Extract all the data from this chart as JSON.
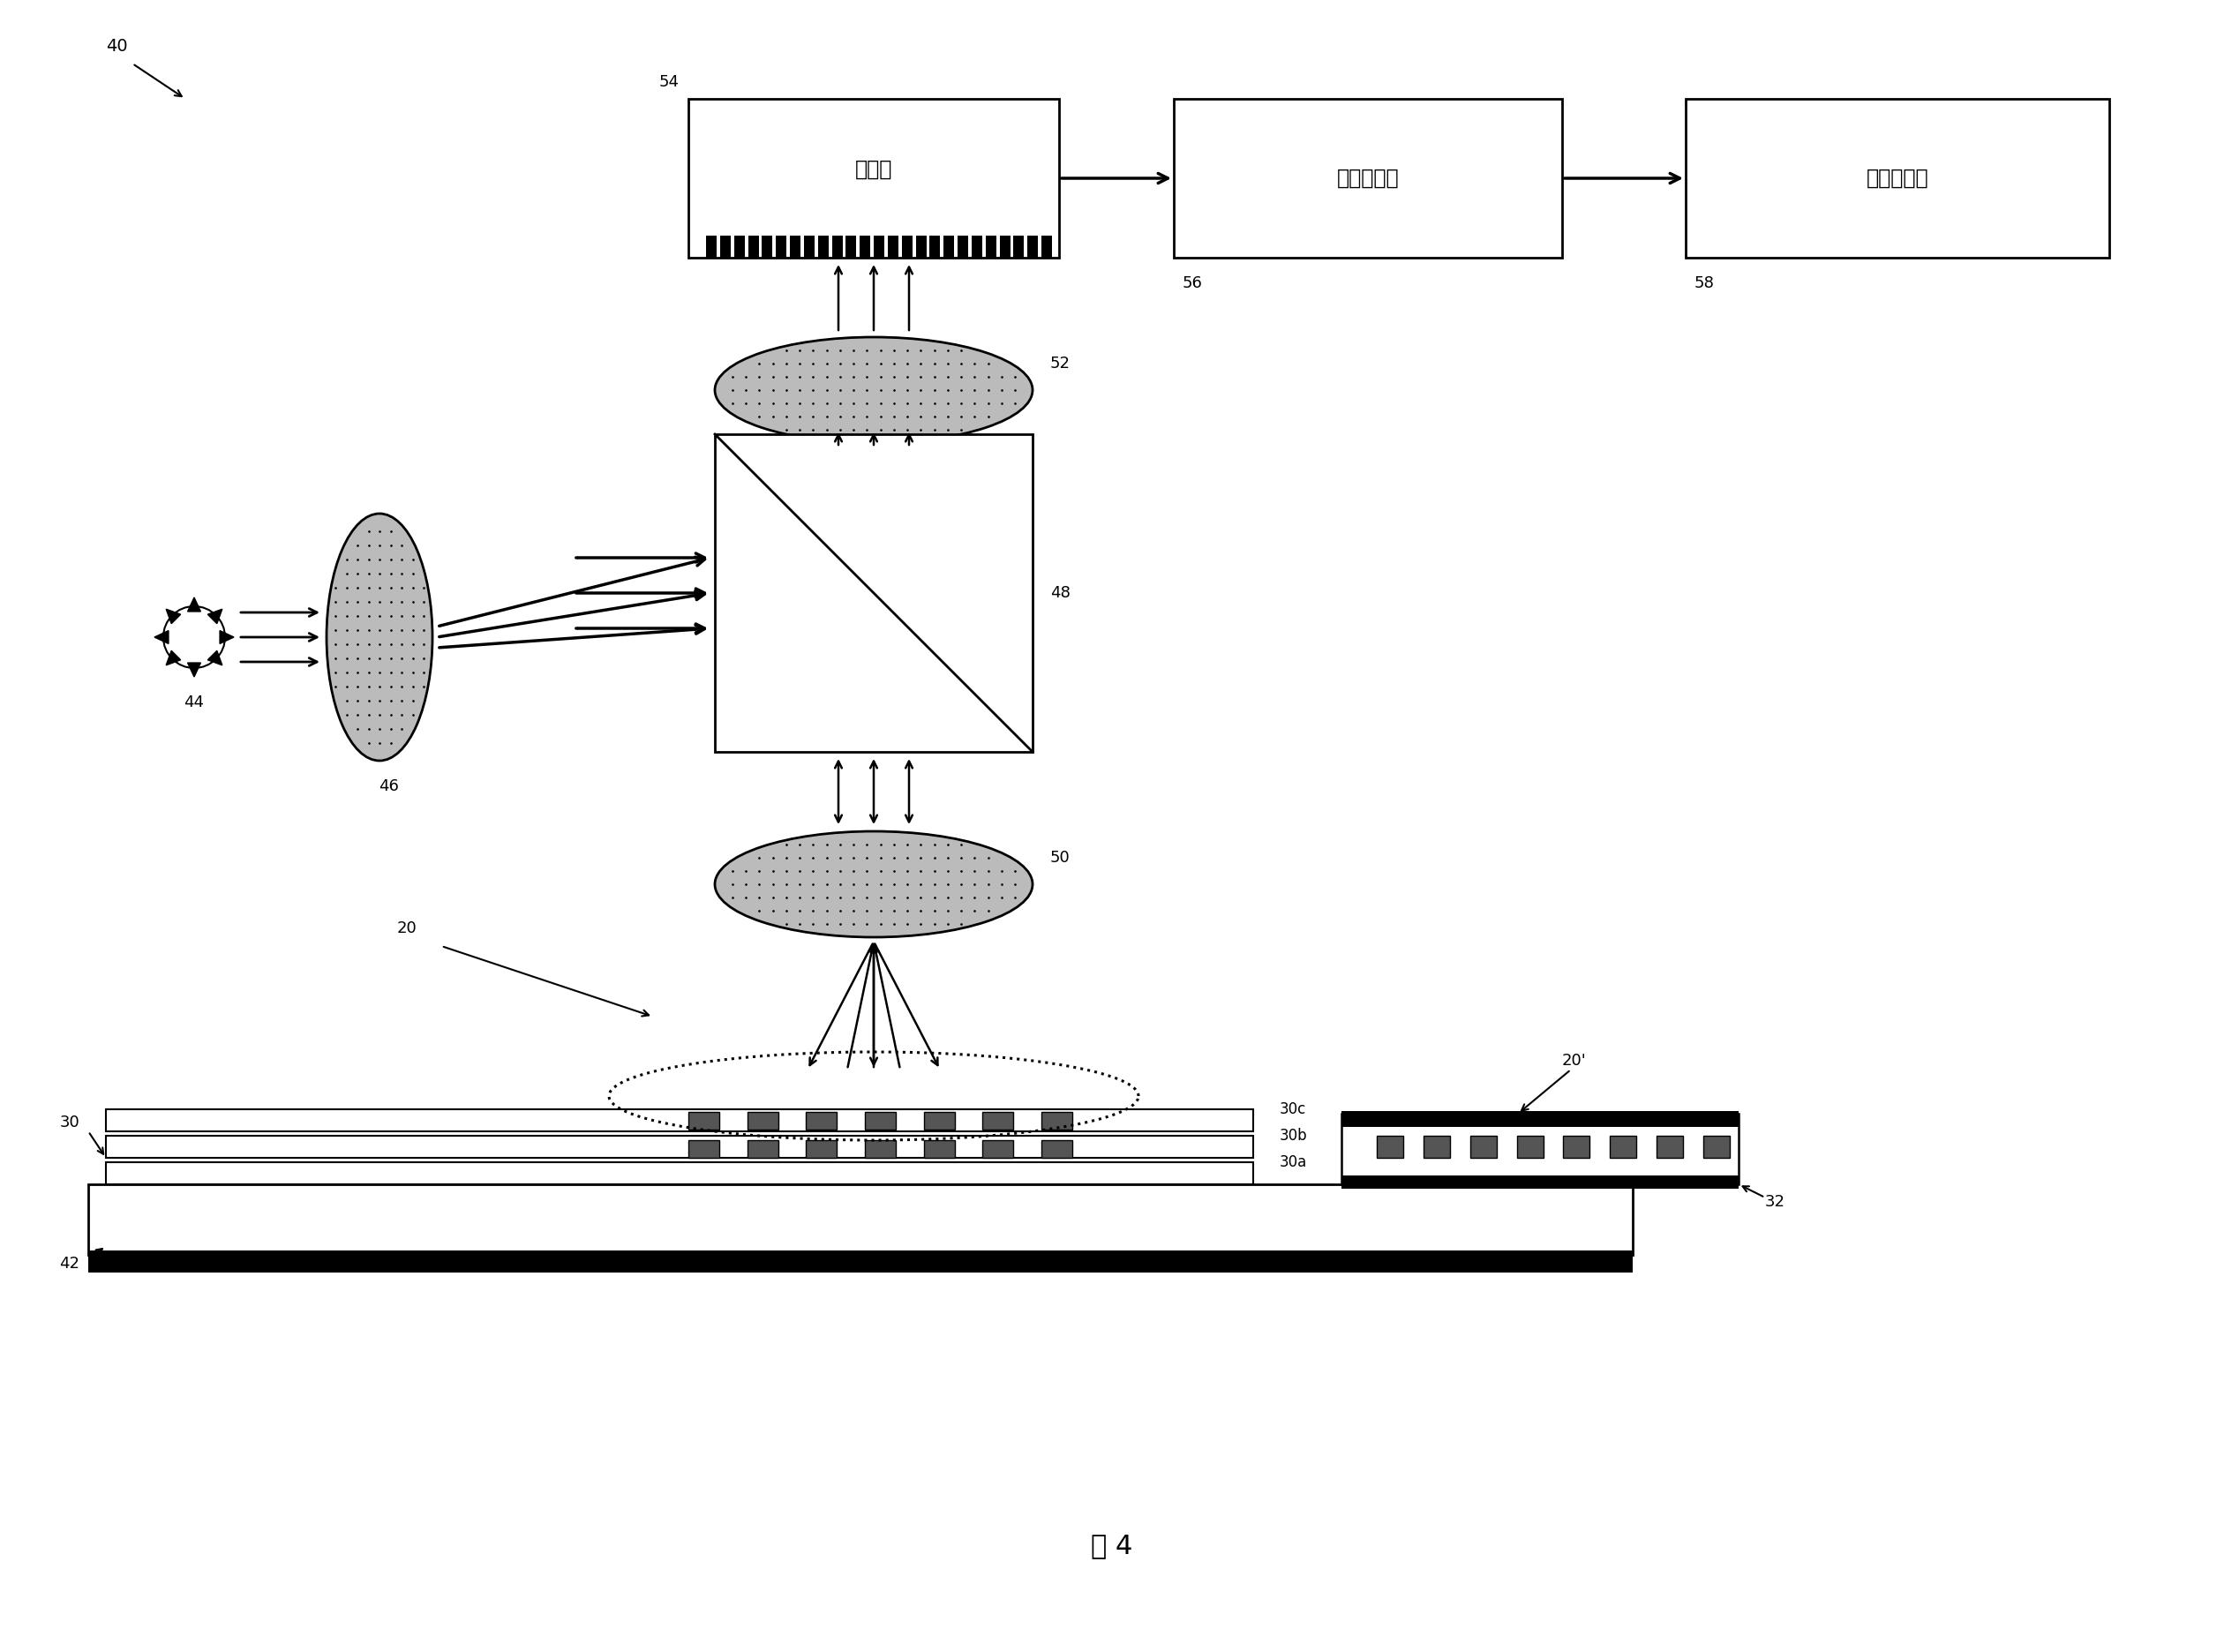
{
  "title": "图 4",
  "bg_color": "#ffffff",
  "label_40": "40",
  "label_44": "44",
  "label_46": "46",
  "label_48": "48",
  "label_50": "50",
  "label_52": "52",
  "label_54": "54",
  "label_56": "56",
  "label_58": "58",
  "label_20": "20",
  "label_20p": "20'",
  "label_30": "30",
  "label_30a": "30a",
  "label_30b": "30b",
  "label_30c": "30c",
  "label_32": "32",
  "label_42": "42",
  "box_camera_text": "照相机",
  "box_capture_text": "图像采集器",
  "box_processor_text": "图像处理器"
}
